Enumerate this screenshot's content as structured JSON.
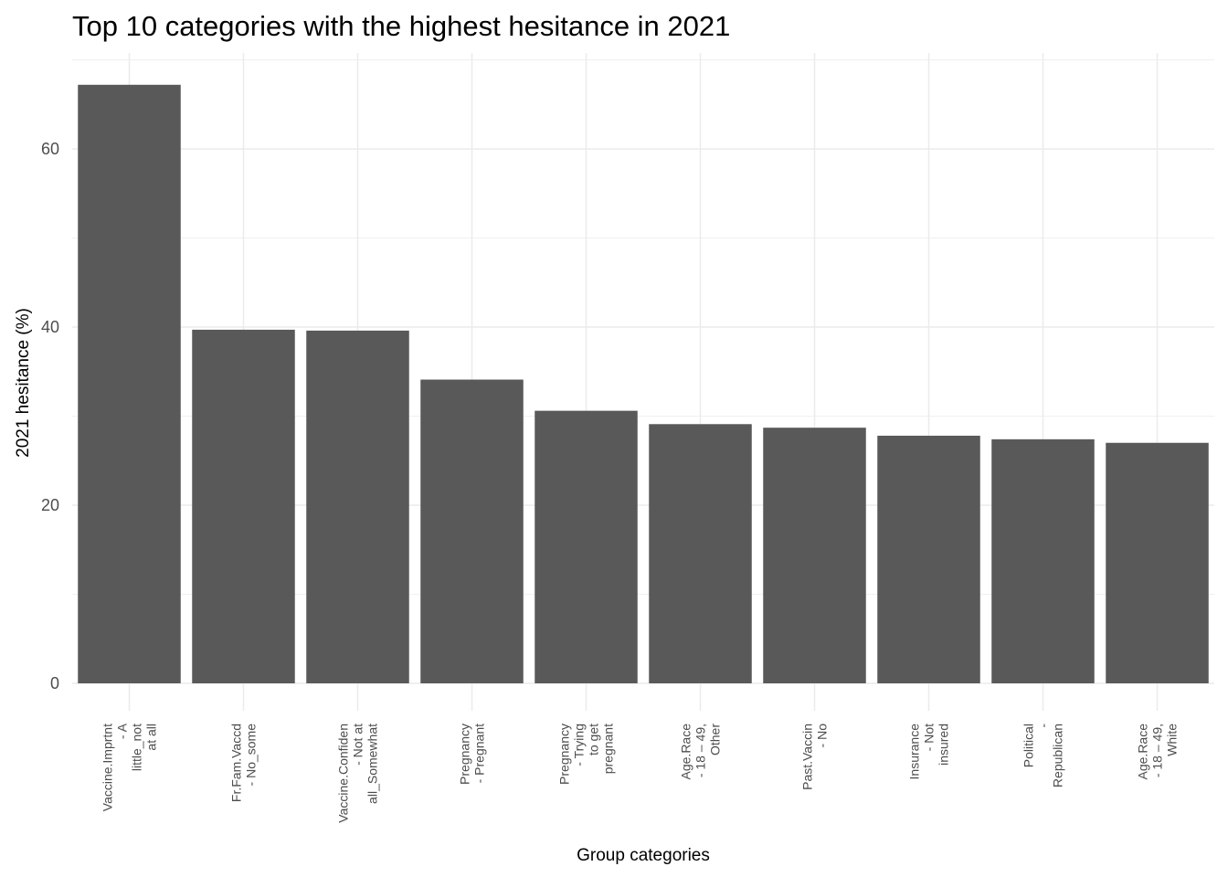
{
  "chart_data": {
    "type": "bar",
    "title": "Top 10 categories with the highest hesitance in 2021",
    "xlabel": "Group categories",
    "ylabel": "2021 hesitance (%)",
    "ylim": [
      0,
      70
    ],
    "yticks": [
      0,
      20,
      40,
      60
    ],
    "grid": true,
    "legend": "none",
    "bar_color": "#595959",
    "grid_color": "#ebebeb",
    "categories": [
      [
        "Vaccine.Imprtnt",
        "- A",
        "little_not",
        "at all"
      ],
      [
        "Fr.Fam.Vaccd",
        "- No_some"
      ],
      [
        "Vaccine.Confiden",
        "- Not at",
        "all_Somewhat"
      ],
      [
        "Pregnancy",
        "- Pregnant"
      ],
      [
        "Pregnancy",
        "- Trying",
        "to get",
        "pregnant"
      ],
      [
        "Age.Race",
        "- 18 – 49,",
        "Other"
      ],
      [
        "Past.Vaccin",
        "- No"
      ],
      [
        "Insurance",
        "- Not",
        "insured"
      ],
      [
        "Political",
        "-",
        "Republican"
      ],
      [
        "Age.Race",
        "- 18 – 49,",
        "White"
      ]
    ],
    "values": [
      67.2,
      39.7,
      39.6,
      34.1,
      30.6,
      29.1,
      28.7,
      27.8,
      27.4,
      27.0
    ]
  }
}
